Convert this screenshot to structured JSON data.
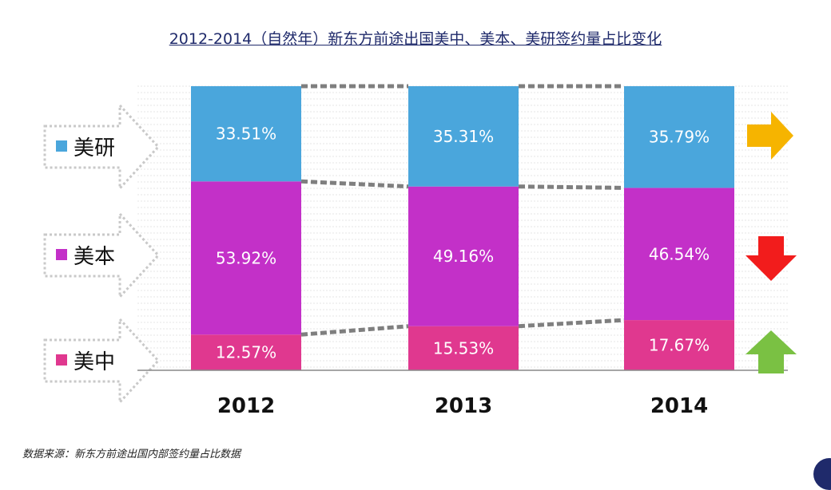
{
  "title": "2012-2014（自然年）新东方前途出国美中、美本、美研签约量占比变化",
  "source": "数据来源：新东方前途出国内部签约量占比数据",
  "chart_data": {
    "type": "bar",
    "stacked": true,
    "percent_stacked": true,
    "categories": [
      "2012",
      "2013",
      "2014"
    ],
    "series": [
      {
        "name": "美中",
        "color": "#e0388f",
        "values": [
          12.57,
          15.53,
          17.67
        ],
        "labels": [
          "12.57%",
          "15.53%",
          "17.67%"
        ],
        "trend": "up",
        "trend_color": "#7ac143"
      },
      {
        "name": "美本",
        "color": "#c330c8",
        "values": [
          53.92,
          49.16,
          46.54
        ],
        "labels": [
          "53.92%",
          "49.16%",
          "46.54%"
        ],
        "trend": "down",
        "trend_color": "#f21c1c"
      },
      {
        "name": "美研",
        "color": "#4aa6dc",
        "values": [
          33.51,
          35.31,
          35.79
        ],
        "labels": [
          "33.51%",
          "35.31%",
          "35.79%"
        ],
        "trend": "right",
        "trend_color": "#f6b400"
      }
    ],
    "ylim": [
      0,
      100
    ],
    "grid": true,
    "legend_position": "left"
  }
}
